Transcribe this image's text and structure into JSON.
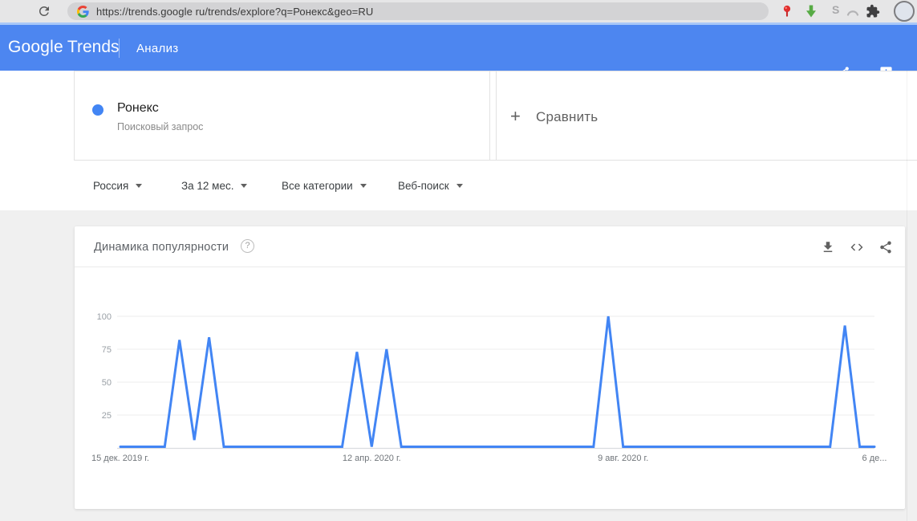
{
  "browser": {
    "url": "https://trends.google ru/trends/explore?q=Ронекс&geo=RU",
    "icons": {
      "reload": "refresh-arrow",
      "favicon": "google-g",
      "pin_extension": "red-pin",
      "save_extension": "green-down-arrow",
      "s_extension": "S",
      "arc_extension": "gray-arc",
      "extensions": "puzzle-piece",
      "avatar": "profile-circle"
    }
  },
  "header": {
    "logo_part1": "Google",
    "logo_part2": "Trends",
    "nav_label": "Анализ",
    "icons": {
      "share": "share-nodes",
      "feedback": "speech-bubble-exclamation"
    }
  },
  "term_card": {
    "title": "Ронекс",
    "subtitle": "Поисковый запрос",
    "dot_color": "#4285f4"
  },
  "compare_card": {
    "plus": "+",
    "label": "Сравнить"
  },
  "filters": {
    "geo": "Россия",
    "time": "За 12 мес.",
    "category": "Все категории",
    "search_type": "Веб-поиск"
  },
  "chart_card": {
    "title": "Динамика популярности",
    "help_glyph": "?",
    "icons": {
      "download": "arrow-down-to-line",
      "embed": "<>",
      "share": "share-nodes"
    }
  },
  "chart_data": {
    "type": "line",
    "title": "Динамика популярности",
    "x_unit": "week",
    "x_ticks": [
      {
        "label": "15 дек. 2019 г.",
        "week": 0
      },
      {
        "label": "12 апр. 2020 г.",
        "week": 17
      },
      {
        "label": "9 авг. 2020 г.",
        "week": 34
      },
      {
        "label": "6 де...",
        "week": 51
      }
    ],
    "y_ticks": [
      25,
      50,
      75,
      100
    ],
    "ylim": [
      0,
      100
    ],
    "grid": true,
    "legend": "none",
    "series": [
      {
        "name": "Ронекс",
        "color": "#4285f4",
        "values": [
          0,
          0,
          0,
          0,
          82,
          6,
          84,
          0,
          0,
          0,
          0,
          0,
          0,
          0,
          0,
          0,
          73,
          0,
          75,
          0,
          0,
          0,
          0,
          0,
          0,
          0,
          0,
          0,
          0,
          0,
          0,
          0,
          0,
          100,
          0,
          0,
          0,
          0,
          0,
          0,
          0,
          0,
          0,
          0,
          0,
          0,
          0,
          0,
          0,
          93,
          0,
          0
        ]
      }
    ]
  },
  "colors": {
    "accent_blue": "#4285f4",
    "header_bg": "#4d86f0",
    "page_bg": "#f0f0f0"
  }
}
